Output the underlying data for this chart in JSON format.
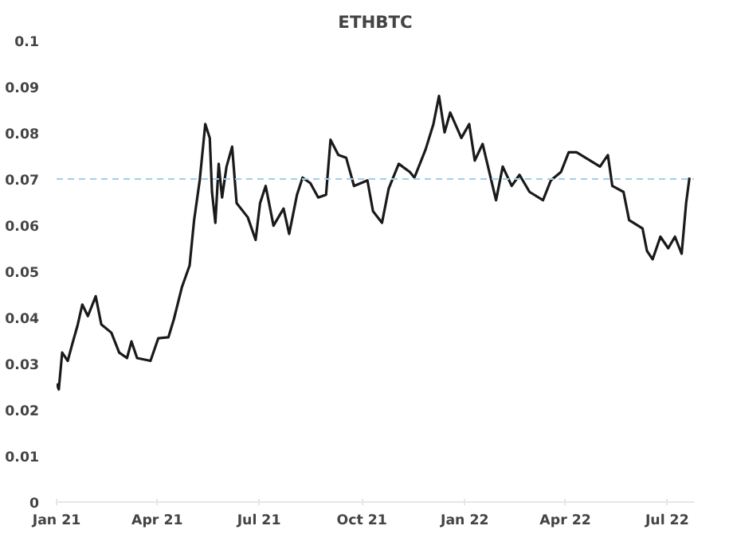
{
  "chart_data": {
    "type": "line",
    "title": "ETHBTC",
    "x": [
      "2021-01-01",
      "2021-01-03",
      "2021-01-06",
      "2021-01-11",
      "2021-01-15",
      "2021-01-20",
      "2021-01-24",
      "2021-01-29",
      "2021-02-05",
      "2021-02-10",
      "2021-02-19",
      "2021-02-26",
      "2021-03-05",
      "2021-03-09",
      "2021-03-14",
      "2021-03-26",
      "2021-04-02",
      "2021-04-11",
      "2021-04-16",
      "2021-04-23",
      "2021-04-30",
      "2021-05-04",
      "2021-05-09",
      "2021-05-12",
      "2021-05-14",
      "2021-05-18",
      "2021-05-20",
      "2021-05-23",
      "2021-05-26",
      "2021-05-29",
      "2021-06-02",
      "2021-06-07",
      "2021-06-11",
      "2021-06-21",
      "2021-06-28",
      "2021-07-02",
      "2021-07-07",
      "2021-07-14",
      "2021-07-23",
      "2021-07-28",
      "2021-08-04",
      "2021-08-09",
      "2021-08-16",
      "2021-08-23",
      "2021-08-30",
      "2021-09-03",
      "2021-09-10",
      "2021-09-17",
      "2021-09-24",
      "2021-10-06",
      "2021-10-11",
      "2021-10-19",
      "2021-10-25",
      "2021-11-03",
      "2021-11-13",
      "2021-11-17",
      "2021-11-27",
      "2021-12-04",
      "2021-12-09",
      "2021-12-14",
      "2021-12-19",
      "2021-12-29",
      "2022-01-05",
      "2022-01-10",
      "2022-01-17",
      "2022-01-29",
      "2022-02-04",
      "2022-02-12",
      "2022-02-19",
      "2022-02-28",
      "2022-03-12",
      "2022-03-19",
      "2022-03-28",
      "2022-04-04",
      "2022-04-11",
      "2022-05-02",
      "2022-05-09",
      "2022-05-13",
      "2022-05-23",
      "2022-05-28",
      "2022-06-09",
      "2022-06-13",
      "2022-06-18",
      "2022-06-25",
      "2022-07-02",
      "2022-07-08",
      "2022-07-14",
      "2022-07-18",
      "2022-07-21"
    ],
    "series": [
      {
        "color": "#1a1a1a",
        "values": [
          0.0257,
          0.0244,
          0.0324,
          0.0306,
          0.0342,
          0.0385,
          0.0428,
          0.0403,
          0.0446,
          0.0385,
          0.0367,
          0.0324,
          0.0312,
          0.0348,
          0.0312,
          0.0306,
          0.0355,
          0.0357,
          0.0397,
          0.0465,
          0.0513,
          0.0611,
          0.0697,
          0.077,
          0.0819,
          0.0789,
          0.0672,
          0.0605,
          0.0733,
          0.066,
          0.0727,
          0.077,
          0.0648,
          0.0617,
          0.0568,
          0.0648,
          0.0685,
          0.0599,
          0.0636,
          0.0581,
          0.0666,
          0.0703,
          0.0691,
          0.066,
          0.0666,
          0.0785,
          0.0752,
          0.0746,
          0.0685,
          0.0697,
          0.063,
          0.0605,
          0.0679,
          0.0733,
          0.0715,
          0.0703,
          0.0764,
          0.0819,
          0.088,
          0.0801,
          0.0844,
          0.0789,
          0.0819,
          0.074,
          0.0776,
          0.0654,
          0.0727,
          0.0685,
          0.0709,
          0.0672,
          0.0654,
          0.0697,
          0.0715,
          0.0758,
          0.0758,
          0.0727,
          0.0752,
          0.0685,
          0.0672,
          0.0611,
          0.0593,
          0.0544,
          0.0526,
          0.0575,
          0.055,
          0.0575,
          0.0538,
          0.0648,
          0.0703
        ]
      }
    ],
    "xlim": [
      "2021-01-01",
      "2022-07-25"
    ],
    "xticks": [
      {
        "value": "2021-01-01",
        "label": "Jan 21"
      },
      {
        "value": "2021-04-01",
        "label": "Apr 21"
      },
      {
        "value": "2021-07-01",
        "label": "Jul 21"
      },
      {
        "value": "2021-10-01",
        "label": "Oct 21"
      },
      {
        "value": "2022-01-01",
        "label": "Jan 22"
      },
      {
        "value": "2022-04-01",
        "label": "Apr 22"
      },
      {
        "value": "2022-07-01",
        "label": "Jul 22"
      }
    ],
    "ylim": [
      0,
      0.1
    ],
    "yticks": [
      0,
      0.01,
      0.02,
      0.03,
      0.04,
      0.05,
      0.06,
      0.07,
      0.08,
      0.09,
      0.1
    ],
    "ref_lines": [
      {
        "axis": "y",
        "value": 0.07,
        "color": "#9fd0ea",
        "line_style": "dashed"
      }
    ],
    "grid": false,
    "line_style": "solid",
    "marker": "none"
  }
}
